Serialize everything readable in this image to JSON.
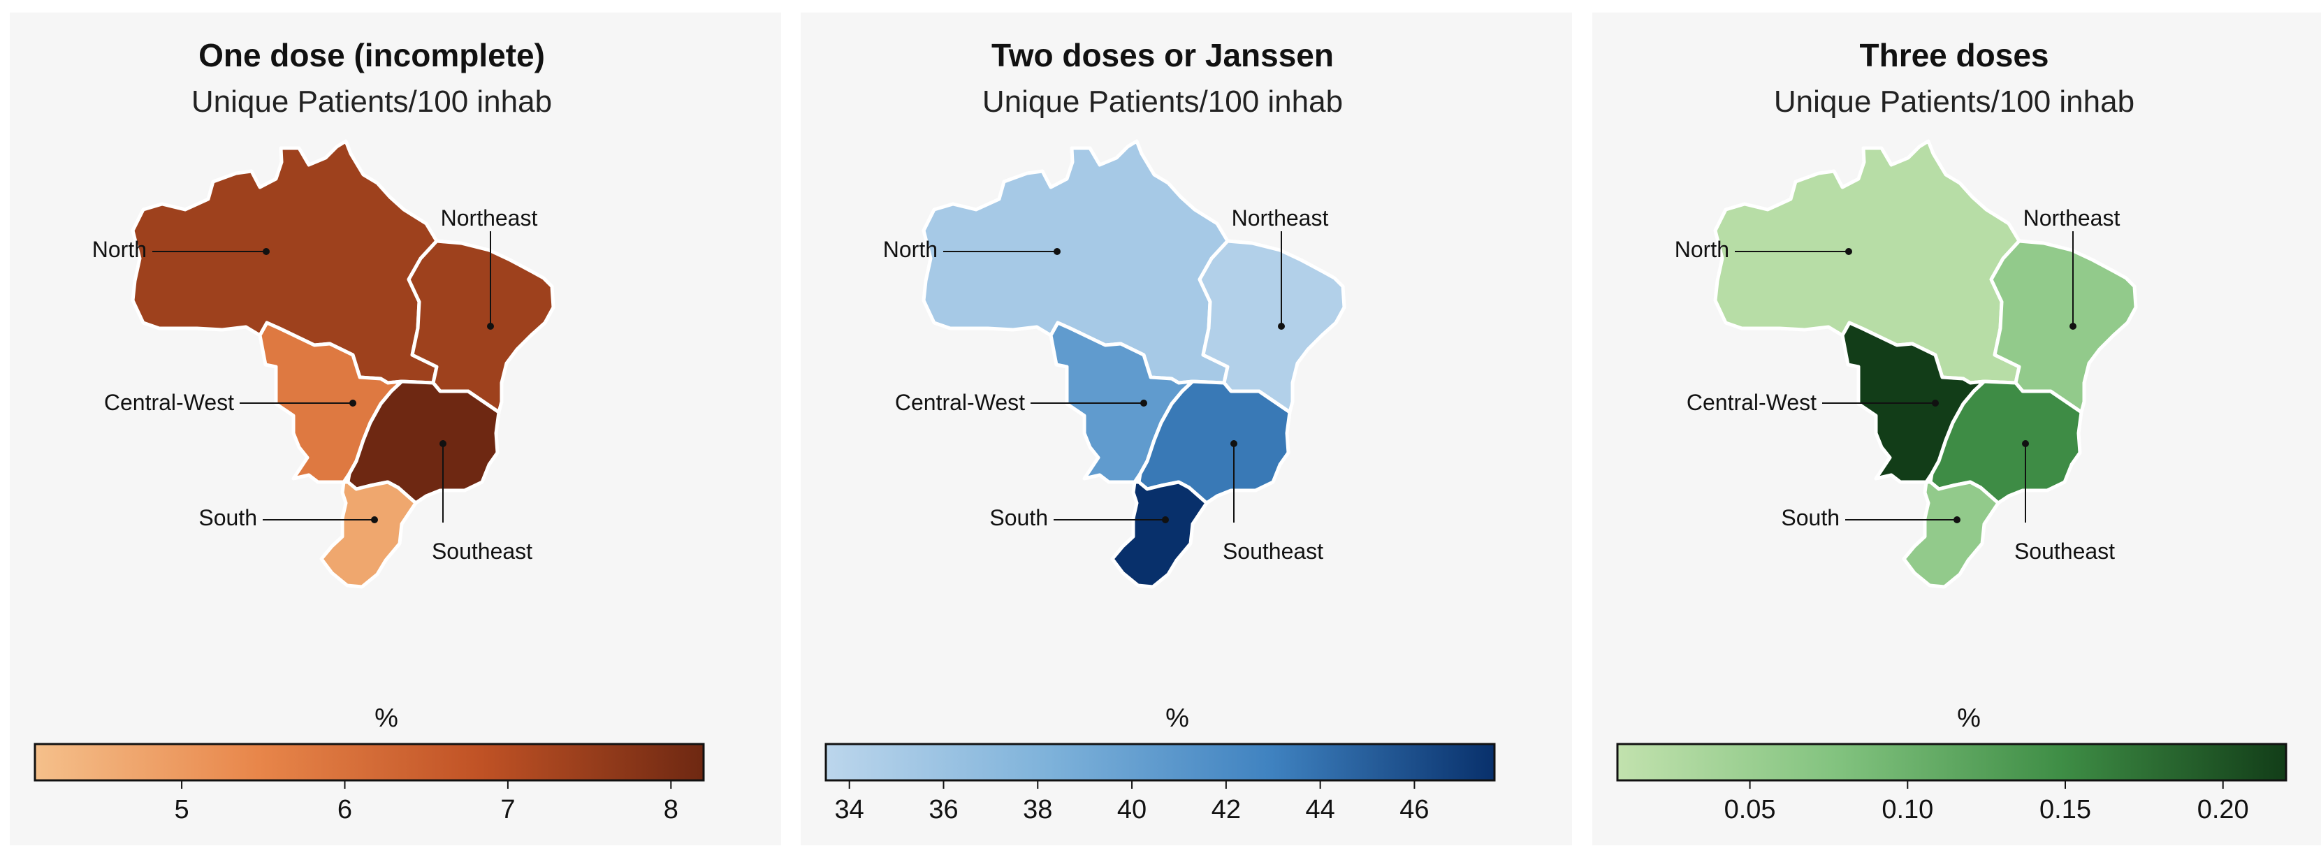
{
  "panels": [
    {
      "title": "One dose (incomplete)",
      "subtitle": "Unique Patients/100 inhab",
      "colorbar_label": "%",
      "scale": {
        "colors": [
          "#f5c08b",
          "#e8864a",
          "#c05225",
          "#6e2812"
        ],
        "min": 4.1,
        "max": 8.2,
        "ticks": [
          "5",
          "6",
          "7",
          "8"
        ]
      },
      "regions": [
        {
          "name": "North",
          "value": 7.4
        },
        {
          "name": "Northeast",
          "value": 7.4
        },
        {
          "name": "Central-West",
          "value": 5.8
        },
        {
          "name": "Southeast",
          "value": 8.2
        },
        {
          "name": "South",
          "value": 4.7
        }
      ]
    },
    {
      "title": "Two doses or Janssen",
      "subtitle": "Unique Patients/100 inhab",
      "colorbar_label": "%",
      "scale": {
        "colors": [
          "#bcd6ec",
          "#7eb2da",
          "#3f82c0",
          "#08306b"
        ],
        "min": 33.5,
        "max": 47.7,
        "ticks": [
          "34",
          "36",
          "38",
          "40",
          "42",
          "44",
          "46"
        ]
      },
      "regions": [
        {
          "name": "North",
          "value": 35.2
        },
        {
          "name": "Northeast",
          "value": 34.3
        },
        {
          "name": "Central-West",
          "value": 40.5
        },
        {
          "name": "Southeast",
          "value": 43.5
        },
        {
          "name": "South",
          "value": 47.7
        }
      ]
    },
    {
      "title": "Three  doses",
      "subtitle": "Unique Patients/100 inhab",
      "colorbar_label": "%",
      "scale": {
        "colors": [
          "#c2e2ae",
          "#81c27e",
          "#3e8d45",
          "#123d18"
        ],
        "min": 0.008,
        "max": 0.22,
        "ticks": [
          "0.05",
          "0.10",
          "0.15",
          "0.20"
        ]
      },
      "regions": [
        {
          "name": "North",
          "value": 0.02
        },
        {
          "name": "Northeast",
          "value": 0.06
        },
        {
          "name": "Central-West",
          "value": 0.22
        },
        {
          "name": "Southeast",
          "value": 0.15
        },
        {
          "name": "South",
          "value": 0.06
        }
      ]
    }
  ]
}
